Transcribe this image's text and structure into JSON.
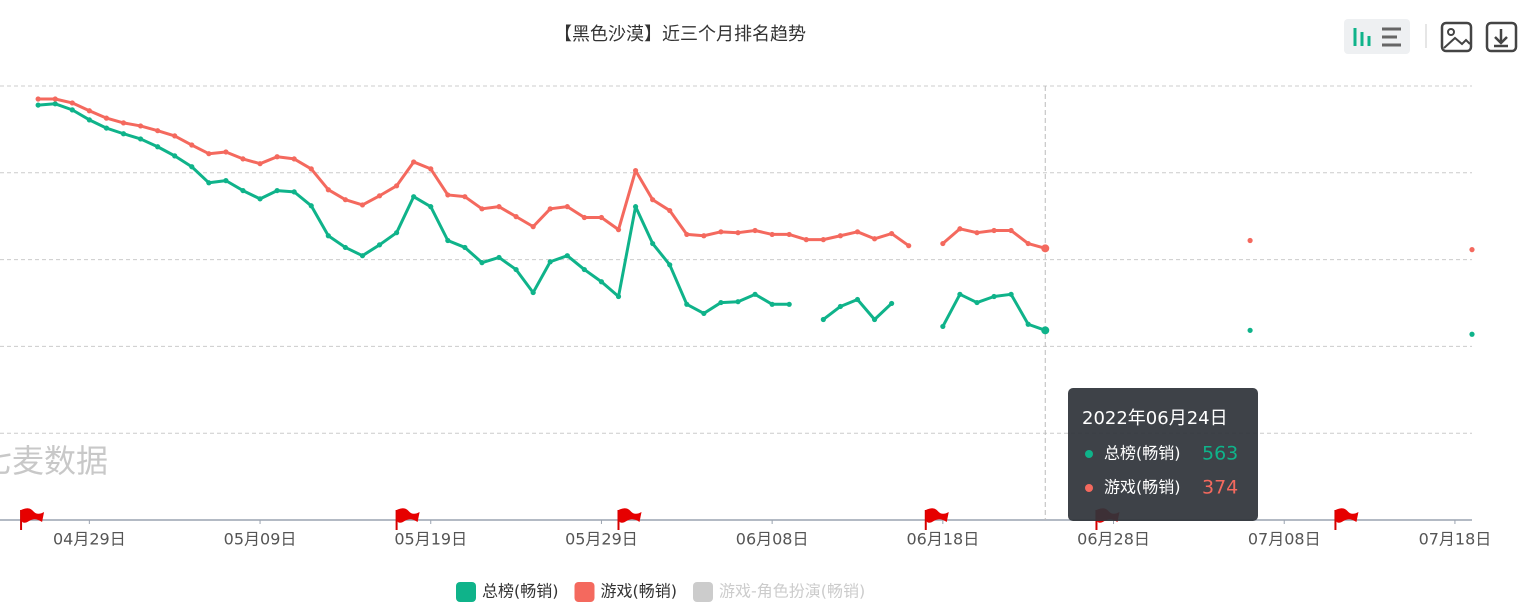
{
  "chart_data": {
    "type": "line",
    "title": "【黑色沙漠】近三个月排名趋势",
    "watermark": "七麦数据",
    "x": [
      "2022年04月26日",
      "2022年04月27日",
      "2022年04月28日",
      "2022年04月29日",
      "2022年04月30日",
      "2022年05月01日",
      "2022年05月02日",
      "2022年05月03日",
      "2022年05月04日",
      "2022年05月05日",
      "2022年05月06日",
      "2022年05月07日",
      "2022年05月08日",
      "2022年05月09日",
      "2022年05月10日",
      "2022年05月11日",
      "2022年05月12日",
      "2022年05月13日",
      "2022年05月14日",
      "2022年05月15日",
      "2022年05月16日",
      "2022年05月17日",
      "2022年05月18日",
      "2022年05月19日",
      "2022年05月20日",
      "2022年05月21日",
      "2022年05月22日",
      "2022年05月23日",
      "2022年05月24日",
      "2022年05月25日",
      "2022年05月26日",
      "2022年05月27日",
      "2022年05月28日",
      "2022年05月29日",
      "2022年05月30日",
      "2022年05月31日",
      "2022年06月01日",
      "2022年06月02日",
      "2022年06月03日",
      "2022年06月04日",
      "2022年06月05日",
      "2022年06月06日",
      "2022年06月07日",
      "2022年06月08日",
      "2022年06月09日",
      "2022年06月10日",
      "2022年06月11日",
      "2022年06月12日",
      "2022年06月13日",
      "2022年06月14日",
      "2022年06月15日",
      "2022年06月16日",
      "2022年06月17日",
      "2022年06月18日",
      "2022年06月19日",
      "2022年06月20日",
      "2022年06月21日",
      "2022年06月22日",
      "2022年06月23日",
      "2022年06月24日",
      "2022年07月06日",
      "2022年07月19日"
    ],
    "series": [
      {
        "name": "总榜(畅销)",
        "color": "#0fb38a",
        "values": [
          44,
          41,
          55,
          78,
          97,
          110,
          122,
          140,
          161,
          186,
          223,
          218,
          241,
          260,
          241,
          244,
          276,
          345,
          372,
          391,
          366,
          338,
          255,
          278,
          356,
          372,
          407,
          395,
          423,
          476,
          405,
          391,
          423,
          451,
          485,
          278,
          363,
          412,
          503,
          524,
          499,
          497,
          480,
          503,
          503,
          null,
          538,
          508,
          492,
          538,
          501,
          null,
          null,
          554,
          480,
          499,
          485,
          480,
          549,
          563,
          563,
          572
        ]
      },
      {
        "name": "游戏(畅销)",
        "color": "#f4695e",
        "values": [
          30,
          30,
          39,
          57,
          74,
          85,
          92,
          103,
          115,
          136,
          156,
          152,
          168,
          179,
          163,
          168,
          191,
          239,
          262,
          274,
          253,
          230,
          175,
          191,
          251,
          255,
          283,
          278,
          301,
          324,
          283,
          278,
          303,
          303,
          331,
          195,
          262,
          287,
          342,
          345,
          336,
          338,
          333,
          342,
          342,
          354,
          354,
          345,
          336,
          352,
          340,
          368,
          null,
          363,
          329,
          338,
          333,
          333,
          363,
          374,
          356,
          377
        ]
      }
    ],
    "inactive_series": [
      {
        "name": "游戏-角色扮演(畅销)",
        "color": "#cccccc"
      }
    ],
    "xlim": [
      "2022年04月24日",
      "2022年07月19日"
    ],
    "xticks": [
      {
        "value": "2022年04月29日",
        "label": "04月29日"
      },
      {
        "value": "2022年05月09日",
        "label": "05月09日"
      },
      {
        "value": "2022年05月19日",
        "label": "05月19日"
      },
      {
        "value": "2022年05月29日",
        "label": "05月29日"
      },
      {
        "value": "2022年06月08日",
        "label": "06月08日"
      },
      {
        "value": "2022年06月18日",
        "label": "06月18日"
      },
      {
        "value": "2022年06月28日",
        "label": "06月28日"
      },
      {
        "value": "2022年07月08日",
        "label": "07月08日"
      },
      {
        "value": "2022年07月18日",
        "label": "07月18日"
      }
    ],
    "ylim": [
      0,
      1000
    ],
    "y_inverted": true,
    "yticks": [
      0,
      200,
      400,
      600,
      800,
      1000
    ],
    "grid": true,
    "events": [
      "2022年04月25日",
      "2022年05月17日",
      "2022年05月30日",
      "2022年06月17日",
      "2022年06月27日",
      "2022年07月11日"
    ],
    "tooltip": {
      "date": "2022年06月24日"
    }
  }
}
